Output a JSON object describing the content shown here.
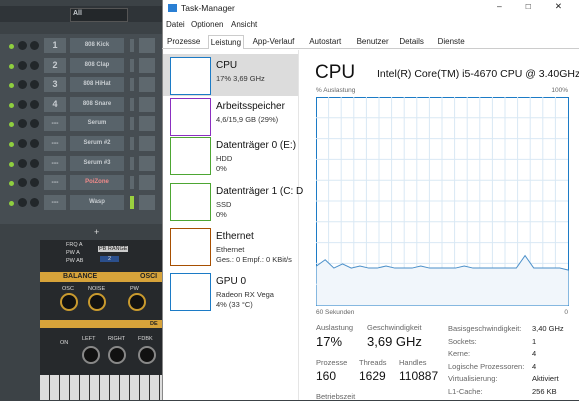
{
  "fl_studio": {
    "filter": "All",
    "add_button": "+",
    "channels": [
      {
        "num": "1",
        "name": "808 Kick"
      },
      {
        "num": "2",
        "name": "808 Clap"
      },
      {
        "num": "3",
        "name": "808 HiHat"
      },
      {
        "num": "4",
        "name": "808 Snare"
      },
      {
        "num": "---",
        "name": "Serum"
      },
      {
        "num": "---",
        "name": "Serum #2"
      },
      {
        "num": "---",
        "name": "Serum #3"
      },
      {
        "num": "---",
        "name": "PoiZone"
      },
      {
        "num": "---",
        "name": "Wasp"
      }
    ],
    "plugin": {
      "frq_a": "FRQ A",
      "pw_a": "PW A",
      "pw_ab": "PW AB",
      "pb_range": "PB RANGE",
      "pb_value": "2",
      "balance": "BALANCE",
      "osc_section": "OSCI",
      "osc": "OSC",
      "noise": "NOISE",
      "pw": "PW",
      "de": "DE",
      "on": "ON",
      "left": "LEFT",
      "right": "RIGHT",
      "fdbk": "FDBK"
    }
  },
  "task_manager": {
    "title": "Task-Manager",
    "menu": [
      "Datei",
      "Optionen",
      "Ansicht"
    ],
    "tabs": [
      "Prozesse",
      "Leistung",
      "App-Verlauf",
      "Autostart",
      "Benutzer",
      "Details",
      "Dienste"
    ],
    "resources": [
      {
        "name": "CPU",
        "lines": [
          "17% 3,69 GHz"
        ],
        "color": "#1c7bc6"
      },
      {
        "name": "Arbeitsspeicher",
        "lines": [
          "4,6/15,9 GB (29%)"
        ],
        "color": "#8b2fc0"
      },
      {
        "name": "Datenträger 0 (E:)",
        "lines": [
          "HDD",
          "0%"
        ],
        "color": "#4da633"
      },
      {
        "name": "Datenträger 1 (C: D",
        "lines": [
          "SSD",
          "0%"
        ],
        "color": "#4da633"
      },
      {
        "name": "Ethernet",
        "lines": [
          "Ethernet",
          "Ges.: 0 Empf.: 0 KBit/s"
        ],
        "color": "#a74f01"
      },
      {
        "name": "GPU 0",
        "lines": [
          "Radeon RX Vega",
          "4% (33 °C)"
        ],
        "color": "#1c7bc6"
      }
    ],
    "detail": {
      "heading": "CPU",
      "model": "Intel(R) Core(TM) i5-4670 CPU @ 3.40GHz",
      "graph": {
        "y_label": "% Auslastung",
        "y_max_label": "100%",
        "x_label": "60 Sekunden",
        "x_end_label": "0",
        "ylim": [
          0,
          100
        ],
        "color": "#4a8fc9",
        "values": [
          19,
          22,
          18,
          20,
          18,
          19,
          18,
          18,
          19,
          18,
          18,
          18,
          19,
          18,
          18,
          18,
          18,
          19,
          18,
          18,
          18,
          18,
          18,
          18,
          24,
          18,
          18,
          18,
          18,
          17
        ]
      },
      "stats": [
        {
          "label": "Auslastung",
          "value": "17%"
        },
        {
          "label": "Geschwindigkeit",
          "value": "3,69 GHz"
        },
        {
          "label": "Prozesse",
          "value": "160"
        },
        {
          "label": "Threads",
          "value": "1629"
        },
        {
          "label": "Handles",
          "value": "110887"
        },
        {
          "label": "Betriebszeit",
          "value": ""
        }
      ],
      "specs": [
        {
          "label": "Basisgeschwindigkeit:",
          "value": "3,40 GHz"
        },
        {
          "label": "Sockets:",
          "value": "1"
        },
        {
          "label": "Kerne:",
          "value": "4"
        },
        {
          "label": "Logische Prozessoren:",
          "value": "4"
        },
        {
          "label": "Virtualisierung:",
          "value": "Aktiviert"
        },
        {
          "label": "L1-Cache:",
          "value": "256 KB"
        }
      ]
    }
  }
}
